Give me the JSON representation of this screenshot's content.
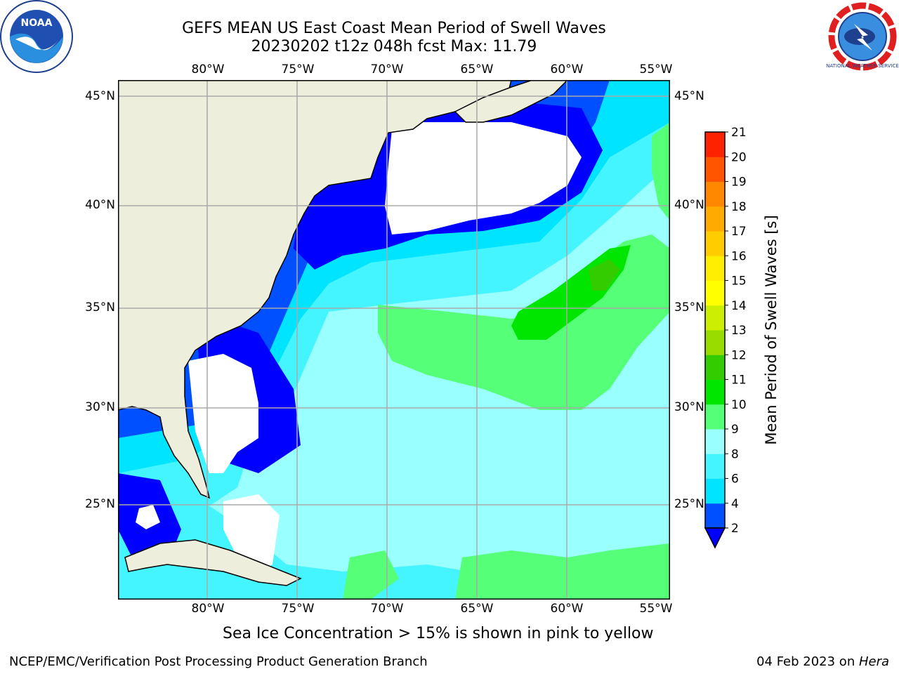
{
  "header": {
    "title_line1": "GEFS MEAN US East Coast Mean Period of Swell Waves",
    "title_line2": "20230202 t12z 048h fcst   Max: 11.79"
  },
  "map": {
    "lon_labels": [
      "80°W",
      "75°W",
      "70°W",
      "65°W",
      "60°W",
      "55°W"
    ],
    "lat_labels": [
      "45°N",
      "40°N",
      "35°N",
      "30°N",
      "25°N"
    ],
    "land_color": "#eeeedd",
    "no_data_color": "#ffffff"
  },
  "colorbar": {
    "label": "Mean Period of Swell Waves [s]",
    "ticks": [
      "2",
      "4",
      "6",
      "8",
      "9",
      "10",
      "11",
      "12",
      "13",
      "14",
      "15",
      "16",
      "17",
      "18",
      "19",
      "20",
      "21"
    ],
    "colors": [
      "#0050ff",
      "#00e4ff",
      "#44f4ff",
      "#99ffff",
      "#55ff77",
      "#00e600",
      "#33cc00",
      "#99dd00",
      "#ccee00",
      "#ffff00",
      "#ffee00",
      "#ffcc00",
      "#ffaa00",
      "#ff8800",
      "#ff5500",
      "#ff2200"
    ],
    "under_color": "#0000ff"
  },
  "subtitle": "Sea Ice Concentration > 15% is shown in pink to yellow",
  "footer": {
    "left": "NCEP/EMC/Verification Post Processing Product Generation Branch",
    "date": "04 Feb 2023 on ",
    "system": "Hera"
  },
  "logos": {
    "noaa_text": "NOAA",
    "nws_text": "NATIONAL WEATHER SERVICE"
  }
}
